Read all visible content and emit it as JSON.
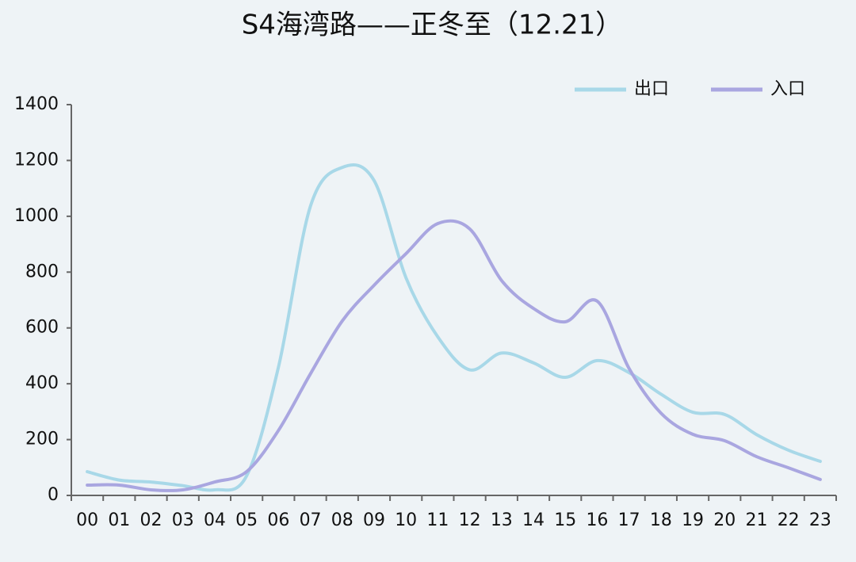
{
  "chart_data": {
    "type": "line",
    "title": "S4海湾路——正冬至（12.21）",
    "categories": [
      "00",
      "01",
      "02",
      "03",
      "04",
      "05",
      "06",
      "07",
      "08",
      "09",
      "10",
      "11",
      "12",
      "13",
      "14",
      "15",
      "16",
      "17",
      "18",
      "19",
      "20",
      "21",
      "22",
      "23"
    ],
    "series": [
      {
        "name": "出口",
        "color": "#a8d8e8",
        "values": [
          85,
          55,
          48,
          35,
          20,
          70,
          460,
          1035,
          1175,
          1128,
          780,
          568,
          450,
          510,
          475,
          423,
          483,
          440,
          363,
          298,
          290,
          218,
          162,
          122
        ]
      },
      {
        "name": "入口",
        "color": "#a9a6e0",
        "values": [
          37,
          37,
          20,
          20,
          48,
          85,
          233,
          435,
          625,
          753,
          866,
          974,
          955,
          770,
          670,
          622,
          696,
          455,
          295,
          219,
          196,
          139,
          99,
          57
        ]
      }
    ],
    "ylim": [
      0,
      1400
    ],
    "yticks": [
      0,
      200,
      400,
      600,
      800,
      1000,
      1200,
      1400
    ],
    "legend": "top-right"
  }
}
